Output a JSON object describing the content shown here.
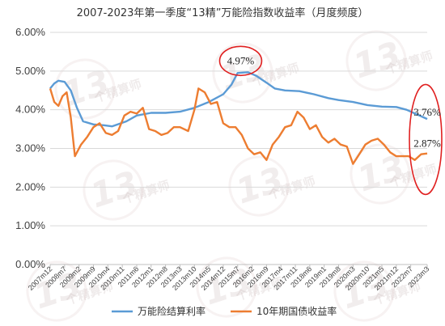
{
  "chart_data": {
    "type": "line",
    "title": "2007-2023年第一季度“13精”万能险指数收益率（月度频度）",
    "ylim": [
      0,
      6
    ],
    "yticks": [
      "0.00%",
      "1.00%",
      "2.00%",
      "3.00%",
      "4.00%",
      "5.00%",
      "6.00%"
    ],
    "ytick_values": [
      0,
      1,
      2,
      3,
      4,
      5,
      6
    ],
    "x_start": "2007m12",
    "x_end": "2023m3",
    "xticks": [
      "2007m12",
      "2008m7",
      "2009m2",
      "2009m9",
      "2010m4",
      "2010m11",
      "2011m6",
      "2012m1",
      "2012m8",
      "2013m3",
      "2013m10",
      "2014m5",
      "2014m12",
      "2015m7",
      "2016m2",
      "2016m9",
      "2017m4",
      "2017m11",
      "2018m6",
      "2019m1",
      "2019m8",
      "2020m3",
      "2020m10",
      "2021m5",
      "2021m12",
      "2022m7",
      "2023m3"
    ],
    "grid": true,
    "legend_position": "bottom",
    "series": [
      {
        "name": "万能险结算利率",
        "color": "#5b9bd5",
        "points": [
          [
            "2007m12",
            4.55
          ],
          [
            "2008m2",
            4.68
          ],
          [
            "2008m4",
            4.75
          ],
          [
            "2008m7",
            4.72
          ],
          [
            "2008m10",
            4.5
          ],
          [
            "2009m1",
            4.05
          ],
          [
            "2009m4",
            3.7
          ],
          [
            "2009m9",
            3.62
          ],
          [
            "2010m2",
            3.6
          ],
          [
            "2010m6",
            3.57
          ],
          [
            "2011m1",
            3.7
          ],
          [
            "2011m6",
            3.85
          ],
          [
            "2012m1",
            3.92
          ],
          [
            "2012m8",
            3.92
          ],
          [
            "2013m3",
            3.95
          ],
          [
            "2013m10",
            4.05
          ],
          [
            "2014m5",
            4.2
          ],
          [
            "2014m12",
            4.4
          ],
          [
            "2015m4",
            4.65
          ],
          [
            "2015m7",
            4.95
          ],
          [
            "2015m12",
            4.97
          ],
          [
            "2016m4",
            4.88
          ],
          [
            "2016m9",
            4.7
          ],
          [
            "2017m1",
            4.55
          ],
          [
            "2017m6",
            4.5
          ],
          [
            "2018m1",
            4.48
          ],
          [
            "2018m8",
            4.4
          ],
          [
            "2019m3",
            4.3
          ],
          [
            "2019m8",
            4.25
          ],
          [
            "2020m3",
            4.2
          ],
          [
            "2020m10",
            4.12
          ],
          [
            "2021m5",
            4.08
          ],
          [
            "2021m12",
            4.07
          ],
          [
            "2022m5",
            4.0
          ],
          [
            "2022m10",
            3.88
          ],
          [
            "2023m3",
            3.76
          ]
        ]
      },
      {
        "name": "10年期国债收益率",
        "color": "#ed7d31",
        "points": [
          [
            "2007m12",
            4.55
          ],
          [
            "2008m2",
            4.2
          ],
          [
            "2008m4",
            4.1
          ],
          [
            "2008m6",
            4.35
          ],
          [
            "2008m8",
            4.45
          ],
          [
            "2008m10",
            3.8
          ],
          [
            "2008m12",
            2.8
          ],
          [
            "2009m3",
            3.1
          ],
          [
            "2009m6",
            3.3
          ],
          [
            "2009m9",
            3.55
          ],
          [
            "2009m12",
            3.65
          ],
          [
            "2010m3",
            3.4
          ],
          [
            "2010m6",
            3.35
          ],
          [
            "2010m9",
            3.45
          ],
          [
            "2010m12",
            3.85
          ],
          [
            "2011m3",
            3.95
          ],
          [
            "2011m6",
            3.9
          ],
          [
            "2011m9",
            4.05
          ],
          [
            "2011m12",
            3.5
          ],
          [
            "2012m3",
            3.45
          ],
          [
            "2012m6",
            3.35
          ],
          [
            "2012m9",
            3.4
          ],
          [
            "2012m12",
            3.55
          ],
          [
            "2013m3",
            3.55
          ],
          [
            "2013m7",
            3.45
          ],
          [
            "2013m10",
            4.0
          ],
          [
            "2013m12",
            4.55
          ],
          [
            "2014m3",
            4.45
          ],
          [
            "2014m6",
            4.15
          ],
          [
            "2014m9",
            4.2
          ],
          [
            "2014m12",
            3.65
          ],
          [
            "2015m3",
            3.55
          ],
          [
            "2015m6",
            3.55
          ],
          [
            "2015m9",
            3.35
          ],
          [
            "2015m12",
            3.0
          ],
          [
            "2016m3",
            2.85
          ],
          [
            "2016m6",
            2.9
          ],
          [
            "2016m9",
            2.7
          ],
          [
            "2016m12",
            3.1
          ],
          [
            "2017m3",
            3.3
          ],
          [
            "2017m6",
            3.55
          ],
          [
            "2017m9",
            3.6
          ],
          [
            "2017m12",
            3.95
          ],
          [
            "2018m3",
            3.8
          ],
          [
            "2018m6",
            3.5
          ],
          [
            "2018m9",
            3.6
          ],
          [
            "2018m12",
            3.3
          ],
          [
            "2019m3",
            3.15
          ],
          [
            "2019m6",
            3.25
          ],
          [
            "2019m9",
            3.1
          ],
          [
            "2019m12",
            3.05
          ],
          [
            "2020m3",
            2.6
          ],
          [
            "2020m6",
            2.85
          ],
          [
            "2020m9",
            3.1
          ],
          [
            "2020m12",
            3.2
          ],
          [
            "2021m3",
            3.25
          ],
          [
            "2021m6",
            3.1
          ],
          [
            "2021m9",
            2.9
          ],
          [
            "2021m12",
            2.8
          ],
          [
            "2022m3",
            2.8
          ],
          [
            "2022m6",
            2.8
          ],
          [
            "2022m9",
            2.7
          ],
          [
            "2022m12",
            2.85
          ],
          [
            "2023m3",
            2.87
          ]
        ]
      }
    ],
    "annotations": [
      {
        "text": "4.97%",
        "series": 0,
        "x": "2015m12",
        "y": 4.97
      },
      {
        "text": "3.76%",
        "series": 0,
        "x": "2023m3",
        "y": 3.76
      },
      {
        "text": "2.87%",
        "series": 1,
        "x": "2023m3",
        "y": 2.87
      }
    ],
    "highlight_color": "#e02020"
  },
  "watermark": {
    "number": "13",
    "text": "个精算师"
  }
}
